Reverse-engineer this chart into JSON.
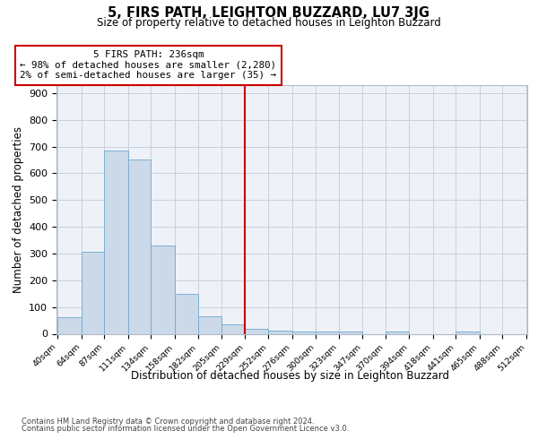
{
  "title": "5, FIRS PATH, LEIGHTON BUZZARD, LU7 3JG",
  "subtitle": "Size of property relative to detached houses in Leighton Buzzard",
  "xlabel": "Distribution of detached houses by size in Leighton Buzzard",
  "ylabel": "Number of detached properties",
  "bar_color": "#ccd9e8",
  "bar_edge_color": "#7bafd4",
  "grid_color": "#c8d0dc",
  "background_color": "#eef2f8",
  "annotation_box_color": "#cc0000",
  "vline_color": "#cc0000",
  "vline_x": 229,
  "annotation_title": "5 FIRS PATH: 236sqm",
  "annotation_line1": "← 98% of detached houses are smaller (2,280)",
  "annotation_line2": "2% of semi-detached houses are larger (35) →",
  "footer_line1": "Contains HM Land Registry data © Crown copyright and database right 2024.",
  "footer_line2": "Contains public sector information licensed under the Open Government Licence v3.0.",
  "bin_edges": [
    40,
    64,
    87,
    111,
    134,
    158,
    182,
    205,
    229,
    252,
    276,
    300,
    323,
    347,
    370,
    394,
    418,
    441,
    465,
    488,
    512
  ],
  "bin_labels": [
    "40sqm",
    "64sqm",
    "87sqm",
    "111sqm",
    "134sqm",
    "158sqm",
    "182sqm",
    "205sqm",
    "229sqm",
    "252sqm",
    "276sqm",
    "300sqm",
    "323sqm",
    "347sqm",
    "370sqm",
    "394sqm",
    "418sqm",
    "441sqm",
    "465sqm",
    "488sqm",
    "512sqm"
  ],
  "bar_heights": [
    62,
    307,
    685,
    652,
    330,
    150,
    65,
    35,
    20,
    13,
    10,
    10,
    10,
    0,
    10,
    0,
    0,
    8,
    0,
    0
  ],
  "ylim": [
    0,
    930
  ],
  "yticks": [
    0,
    100,
    200,
    300,
    400,
    500,
    600,
    700,
    800,
    900
  ]
}
